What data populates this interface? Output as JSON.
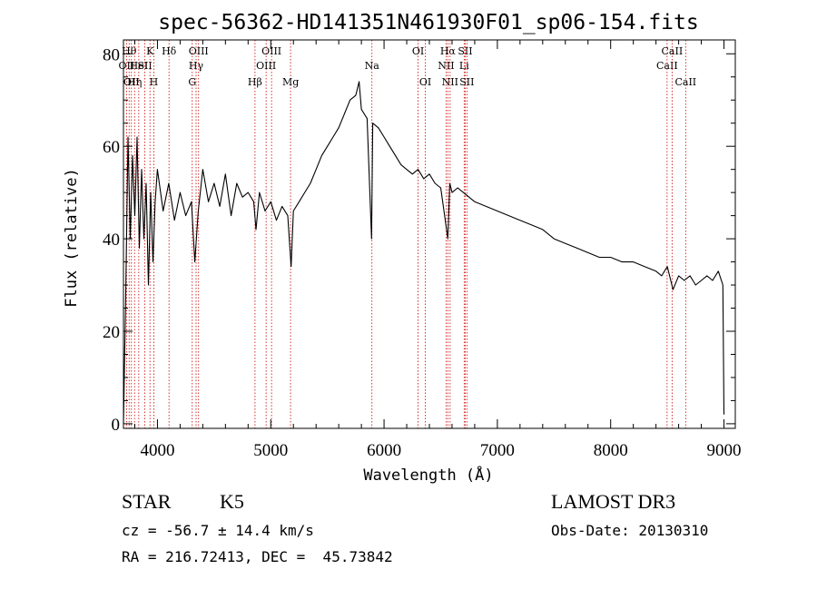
{
  "chart_data": {
    "type": "line",
    "title": "spec-56362-HD141351N461930F01_sp06-154.fits",
    "xlabel": "Wavelength (Å)",
    "ylabel": "Flux (relative)",
    "xlim": [
      3700,
      9100
    ],
    "ylim": [
      -1,
      83
    ],
    "x_ticks": [
      4000,
      5000,
      6000,
      7000,
      8000,
      9000
    ],
    "y_ticks": [
      0,
      20,
      40,
      60,
      80
    ],
    "series": [
      {
        "name": "flux",
        "x": [
          3700,
          3720,
          3740,
          3760,
          3780,
          3800,
          3820,
          3840,
          3860,
          3880,
          3900,
          3920,
          3940,
          3960,
          3980,
          4000,
          4050,
          4100,
          4150,
          4200,
          4250,
          4300,
          4330,
          4360,
          4400,
          4450,
          4500,
          4550,
          4600,
          4650,
          4700,
          4750,
          4800,
          4850,
          4870,
          4900,
          4950,
          5000,
          5050,
          5100,
          5150,
          5180,
          5200,
          5250,
          5300,
          5350,
          5400,
          5450,
          5500,
          5550,
          5600,
          5650,
          5700,
          5750,
          5780,
          5800,
          5850,
          5890,
          5900,
          5950,
          6000,
          6050,
          6100,
          6150,
          6200,
          6250,
          6300,
          6350,
          6400,
          6450,
          6500,
          6540,
          6563,
          6580,
          6600,
          6650,
          6700,
          6750,
          6800,
          6900,
          7000,
          7100,
          7200,
          7300,
          7400,
          7500,
          7600,
          7700,
          7800,
          7900,
          8000,
          8100,
          8200,
          8300,
          8400,
          8450,
          8500,
          8550,
          8600,
          8650,
          8700,
          8750,
          8800,
          8850,
          8900,
          8950,
          8990,
          9000
        ],
        "values": [
          0,
          28,
          62,
          40,
          58,
          45,
          62,
          38,
          55,
          40,
          52,
          30,
          50,
          35,
          48,
          55,
          46,
          52,
          44,
          50,
          45,
          48,
          35,
          46,
          55,
          48,
          52,
          47,
          54,
          45,
          52,
          49,
          50,
          48,
          42,
          50,
          46,
          48,
          44,
          47,
          45,
          34,
          46,
          48,
          50,
          52,
          55,
          58,
          60,
          62,
          64,
          67,
          70,
          71,
          74,
          68,
          66,
          40,
          65,
          64,
          62,
          60,
          58,
          56,
          55,
          54,
          55,
          53,
          54,
          52,
          51,
          44,
          40,
          52,
          50,
          51,
          50,
          49,
          48,
          47,
          46,
          45,
          44,
          43,
          42,
          40,
          39,
          38,
          37,
          36,
          36,
          35,
          35,
          34,
          33,
          32,
          34,
          29,
          32,
          31,
          32,
          30,
          31,
          32,
          31,
          33,
          30,
          2
        ]
      }
    ],
    "line_markers": [
      {
        "wavelength": 3727,
        "label": "OII",
        "row": 1
      },
      {
        "wavelength": 3750,
        "label": "Hθ",
        "row": 0
      },
      {
        "wavelength": 3770,
        "label": "OII",
        "row": 2
      },
      {
        "wavelength": 3798,
        "label": "Hη",
        "row": 2
      },
      {
        "wavelength": 3835,
        "label": "HeI",
        "row": 1
      },
      {
        "wavelength": 3889,
        "label": "SII",
        "row": 1
      },
      {
        "wavelength": 3934,
        "label": "K",
        "row": 0
      },
      {
        "wavelength": 3968,
        "label": "H",
        "row": 2
      },
      {
        "wavelength": 4102,
        "label": "Hδ",
        "row": 0
      },
      {
        "wavelength": 4307,
        "label": "G",
        "row": 2
      },
      {
        "wavelength": 4341,
        "label": "Hγ",
        "row": 1
      },
      {
        "wavelength": 4363,
        "label": "OIII",
        "row": 0
      },
      {
        "wavelength": 4861,
        "label": "Hβ",
        "row": 2
      },
      {
        "wavelength": 4959,
        "label": "OIII",
        "row": 1
      },
      {
        "wavelength": 5007,
        "label": "OIII",
        "row": 0
      },
      {
        "wavelength": 5175,
        "label": "Mg",
        "row": 2
      },
      {
        "wavelength": 5893,
        "label": "Na",
        "row": 1
      },
      {
        "wavelength": 6300,
        "label": "OI",
        "row": 0
      },
      {
        "wavelength": 6364,
        "label": "OI",
        "row": 2
      },
      {
        "wavelength": 6548,
        "label": "NII",
        "row": 1
      },
      {
        "wavelength": 6563,
        "label": "Hα",
        "row": 0
      },
      {
        "wavelength": 6583,
        "label": "NII",
        "row": 2
      },
      {
        "wavelength": 6707,
        "label": "Li",
        "row": 1
      },
      {
        "wavelength": 6716,
        "label": "SII",
        "row": 0
      },
      {
        "wavelength": 6731,
        "label": "SII",
        "row": 2
      },
      {
        "wavelength": 8498,
        "label": "CaII",
        "row": 1
      },
      {
        "wavelength": 8542,
        "label": "CaII",
        "row": 0
      },
      {
        "wavelength": 8662,
        "label": "CaII",
        "row": 2
      }
    ],
    "colors": {
      "spectrum": "#000000",
      "marker": "#cc0000",
      "axes": "#000000"
    }
  },
  "footer": {
    "class": "STAR",
    "subclass": "K5",
    "survey": "LAMOST DR3",
    "cz": "cz = -56.7 ± 14.4 km/s",
    "obs_date": "Obs-Date: 20130310",
    "coords": "RA = 216.72413, DEC =  45.73842"
  }
}
